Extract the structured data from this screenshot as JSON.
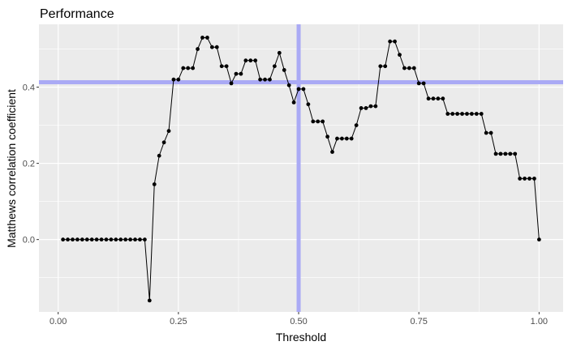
{
  "chart_data": {
    "type": "line",
    "title": "Performance",
    "xlabel": "Threshold",
    "ylabel": "Matthews correlation coefficient",
    "xlim": [
      -0.04,
      1.05
    ],
    "ylim": [
      -0.19,
      0.565
    ],
    "x_ticks": [
      0.0,
      0.25,
      0.5,
      0.75,
      1.0
    ],
    "x_tick_labels": [
      "0.00",
      "0.25",
      "0.50",
      "0.75",
      "1.00"
    ],
    "y_ticks": [
      0.0,
      0.2,
      0.4
    ],
    "y_tick_labels": [
      "0.0",
      "0.2",
      "0.4"
    ],
    "grid": true,
    "colors": {
      "panel": "#ebebeb",
      "grid": "#ffffff",
      "line": "#000000",
      "ref": "#aaaaf5"
    },
    "reference_lines": {
      "vertical_x": 0.5,
      "horizontal_y": 0.413
    },
    "series": [
      {
        "x": [
          0.01,
          0.02,
          0.03,
          0.04,
          0.05,
          0.06,
          0.07,
          0.08,
          0.09,
          0.1,
          0.11,
          0.12,
          0.13,
          0.14,
          0.15,
          0.16,
          0.17,
          0.18,
          0.19,
          0.2,
          0.21,
          0.22,
          0.23,
          0.24,
          0.25,
          0.26,
          0.27,
          0.28,
          0.29,
          0.3,
          0.31,
          0.32,
          0.33,
          0.34,
          0.35,
          0.36,
          0.37,
          0.38,
          0.39,
          0.4,
          0.41,
          0.42,
          0.43,
          0.44,
          0.45,
          0.46,
          0.47,
          0.48,
          0.49,
          0.5,
          0.51,
          0.52,
          0.53,
          0.54,
          0.55,
          0.56,
          0.57,
          0.58,
          0.59,
          0.6,
          0.61,
          0.62,
          0.63,
          0.64,
          0.65,
          0.66,
          0.67,
          0.68,
          0.69,
          0.7,
          0.71,
          0.72,
          0.73,
          0.74,
          0.75,
          0.76,
          0.77,
          0.78,
          0.79,
          0.8,
          0.81,
          0.82,
          0.83,
          0.84,
          0.85,
          0.86,
          0.87,
          0.88,
          0.89,
          0.9,
          0.91,
          0.92,
          0.93,
          0.94,
          0.95,
          0.96,
          0.97,
          0.98,
          0.99,
          1.0
        ],
        "y": [
          0,
          0,
          0,
          0,
          0,
          0,
          0,
          0,
          0,
          0,
          0,
          0,
          0,
          0,
          0,
          0,
          0,
          0,
          -0.16,
          0.145,
          0.22,
          0.255,
          0.285,
          0.42,
          0.42,
          0.45,
          0.45,
          0.45,
          0.5,
          0.53,
          0.53,
          0.505,
          0.505,
          0.455,
          0.455,
          0.41,
          0.435,
          0.435,
          0.47,
          0.47,
          0.47,
          0.42,
          0.42,
          0.42,
          0.455,
          0.49,
          0.445,
          0.405,
          0.36,
          0.395,
          0.395,
          0.355,
          0.31,
          0.31,
          0.31,
          0.27,
          0.23,
          0.265,
          0.265,
          0.265,
          0.265,
          0.3,
          0.345,
          0.345,
          0.35,
          0.35,
          0.455,
          0.455,
          0.52,
          0.52,
          0.485,
          0.45,
          0.45,
          0.45,
          0.41,
          0.41,
          0.37,
          0.37,
          0.37,
          0.37,
          0.33,
          0.33,
          0.33,
          0.33,
          0.33,
          0.33,
          0.33,
          0.33,
          0.28,
          0.28,
          0.225,
          0.225,
          0.225,
          0.225,
          0.225,
          0.16,
          0.16,
          0.16,
          0.16,
          0.0
        ]
      }
    ]
  }
}
